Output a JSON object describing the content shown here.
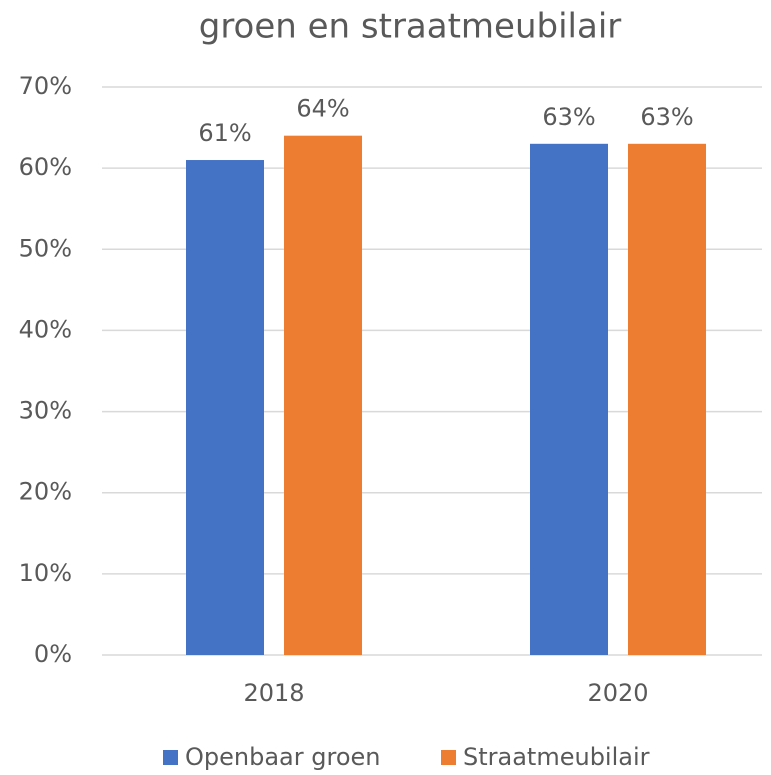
{
  "chart_data": {
    "type": "bar",
    "title": "groen en straatmeubilair",
    "categories": [
      "2018",
      "2020"
    ],
    "series": [
      {
        "name": "Openbaar groen",
        "color": "#4472c4",
        "values": [
          61,
          63
        ],
        "value_labels": [
          "61%",
          "63%"
        ]
      },
      {
        "name": "Straatmeubilair",
        "color": "#ed7d31",
        "values": [
          64,
          63
        ],
        "value_labels": [
          "64%",
          "63%"
        ]
      }
    ],
    "ylim": [
      0,
      70
    ],
    "yticks": [
      {
        "value": 0,
        "label": "0%"
      },
      {
        "value": 10,
        "label": "10%"
      },
      {
        "value": 20,
        "label": "20%"
      },
      {
        "value": 30,
        "label": "30%"
      },
      {
        "value": 40,
        "label": "40%"
      },
      {
        "value": 50,
        "label": "50%"
      },
      {
        "value": 60,
        "label": "60%"
      },
      {
        "value": 70,
        "label": "70%"
      }
    ],
    "grid": true,
    "legend": "bottom"
  }
}
